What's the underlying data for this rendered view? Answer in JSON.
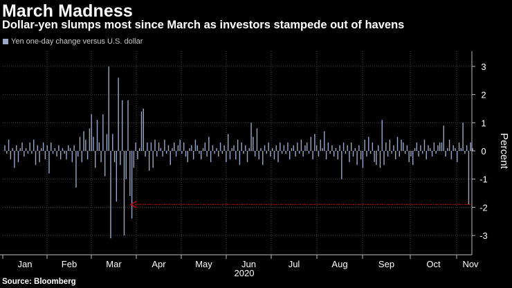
{
  "title": "March Madness",
  "subtitle": "Dollar-yen slumps most since March as investors stampede out of havens",
  "source": "Source: Bloomberg",
  "colors": {
    "background": "#000000",
    "bar": "#9aa7c7",
    "grid": "#4a4a4a",
    "axis": "#bfbfbf",
    "arrow": "#d0021b"
  },
  "chart_data": {
    "type": "bar",
    "title": "March Madness",
    "subtitle": "Dollar-yen slumps most since March as investors stampede out of havens",
    "legend": [
      "Yen one-day change versus U.S. dollar"
    ],
    "legend_position": "top-left",
    "ylabel": "Percent",
    "xlabel": "2020",
    "ylim": [
      -3.5,
      3.5
    ],
    "yticks": [
      3,
      2,
      1,
      0,
      -1,
      -2,
      -3
    ],
    "y_axis_side": "right",
    "grid": true,
    "x_tick_labels": [
      "Jan",
      "Feb",
      "Mar",
      "Apr",
      "May",
      "Jun",
      "Jul",
      "Aug",
      "Sep",
      "Oct",
      "Nov"
    ],
    "series": [
      {
        "name": "Yen one-day change versus U.S. dollar",
        "values": [
          0.2,
          -0.1,
          0.4,
          -0.3,
          0.1,
          -0.6,
          0.2,
          -0.4,
          0.1,
          0.3,
          -0.2,
          0.1,
          -0.1,
          0.3,
          -0.1,
          0.4,
          -0.5,
          0.2,
          -0.4,
          0.1,
          0.3,
          -0.3,
          0.2,
          -0.8,
          0.3,
          -0.1,
          0.1,
          -0.2,
          0.2,
          -0.3,
          0.1,
          -0.1,
          -0.3,
          0.2,
          0.1,
          -0.4,
          0.2,
          -1.3,
          -0.2,
          0.5,
          -0.4,
          0.7,
          0.4,
          -0.3,
          0.8,
          1.3,
          0.5,
          -0.6,
          1.1,
          0.3,
          -0.4,
          1.3,
          -0.9,
          0.6,
          3.0,
          -3.1,
          0.6,
          -0.4,
          -1.8,
          2.6,
          -0.5,
          1.8,
          -3.0,
          -1.0,
          1.8,
          -1.6,
          -2.4,
          -0.6,
          0.3,
          -0.3,
          0.1,
          1.4,
          1.5,
          -0.2,
          0.3,
          -0.7,
          0.3,
          -0.6,
          0.4,
          -0.2,
          0.3,
          0.1,
          -0.2,
          0.4,
          -0.1,
          0.2,
          -0.5,
          0.1,
          0.3,
          -0.2,
          0.2,
          0.4,
          -0.1,
          0.3,
          -0.2,
          -0.4,
          0.1,
          0.2,
          -0.3,
          0.4,
          0.2,
          -0.1,
          -0.3,
          0.1,
          0.3,
          -0.2,
          0.5,
          -0.4,
          0.2,
          -0.1,
          0.1,
          -0.2,
          0.3,
          -0.1,
          0.2,
          -0.4,
          0.6,
          -0.3,
          0.1,
          0.2,
          -0.3,
          0.4,
          -0.5,
          0.3,
          -0.1,
          0.2,
          -0.4,
          0.1,
          1.0,
          0.5,
          -0.2,
          0.8,
          -0.3,
          0.1,
          -0.5,
          0.2,
          -0.1,
          0.3,
          -0.2,
          0.1,
          -0.3,
          0.2,
          -0.4,
          0.3,
          -0.1,
          0.2,
          -0.1,
          0.3,
          -0.3,
          0.1,
          0.2,
          -0.2,
          0.3,
          -0.1,
          0.4,
          -0.2,
          0.2,
          0.3,
          -0.1,
          0.5,
          -0.3,
          0.6,
          0.2,
          -0.2,
          0.4,
          0.1,
          0.7,
          -0.3,
          0.3,
          -0.1,
          0.2,
          -0.2,
          0.1,
          -0.3,
          0.2,
          -1.0,
          0.3,
          -0.1,
          0.2,
          -0.4,
          0.3,
          -0.2,
          0.1,
          -0.5,
          0.2,
          -0.3,
          -0.6,
          0.4,
          -0.2,
          0.5,
          -0.1,
          0.3,
          -0.4,
          -0.5,
          0.2,
          -0.6,
          1.1,
          -0.5,
          0.3,
          -0.2,
          0.4,
          -0.1,
          0.2,
          -0.3,
          0.5,
          -0.2,
          0.4,
          0.3,
          -0.1,
          0.2,
          -0.4,
          -0.2,
          -0.5,
          0.1,
          0.3,
          -0.2,
          0.2,
          -0.1,
          0.4,
          -0.3,
          0.2,
          0.1,
          -0.2,
          0.3,
          -0.1,
          0.2,
          0.3,
          0.3,
          0.9,
          -0.2,
          0.1,
          0.4,
          -0.3,
          0.2,
          0.1,
          -0.4,
          0.3,
          0.1,
          1.0,
          -0.1,
          0.2,
          -1.9,
          0.3,
          0.1
        ]
      }
    ],
    "annotations": [
      {
        "type": "arrow",
        "direction": "left",
        "at_value": -1.9,
        "points_to": "Mar"
      }
    ]
  }
}
